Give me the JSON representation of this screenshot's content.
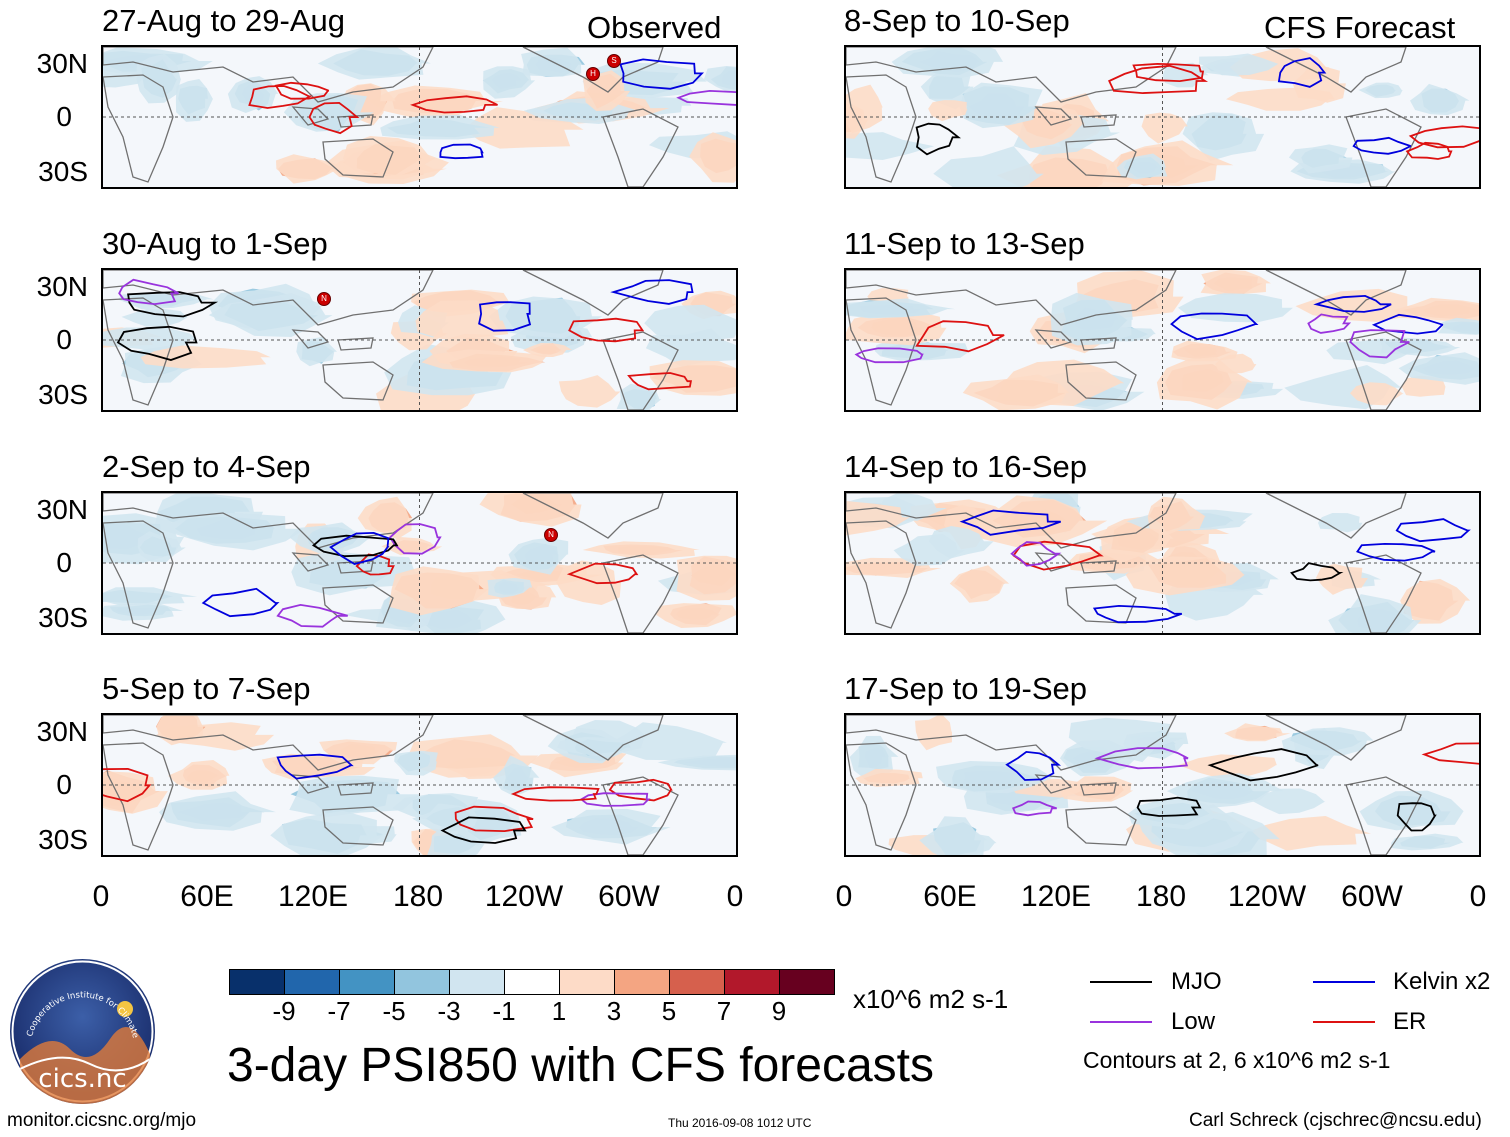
{
  "columns": {
    "left": {
      "label": "Observed"
    },
    "right": {
      "label": "CFS Forecast"
    }
  },
  "panels": {
    "left": [
      {
        "title": "27-Aug to 29-Aug"
      },
      {
        "title": "30-Aug to 1-Sep"
      },
      {
        "title": "2-Sep to 4-Sep"
      },
      {
        "title": "5-Sep to 7-Sep"
      }
    ],
    "right": [
      {
        "title": "8-Sep to 10-Sep"
      },
      {
        "title": "11-Sep to 13-Sep"
      },
      {
        "title": "14-Sep to 16-Sep"
      },
      {
        "title": "17-Sep to 19-Sep"
      }
    ]
  },
  "axes": {
    "lat_labels": [
      "30N",
      "0",
      "30S"
    ],
    "lon_labels": [
      "0",
      "60E",
      "120E",
      "180",
      "120W",
      "60W",
      "0"
    ]
  },
  "storm_markers": {
    "panel1": [
      "H",
      "S"
    ],
    "panel2": [
      "N"
    ],
    "panel3": [
      "N"
    ]
  },
  "colorbar": {
    "labels": [
      "-9",
      "-7",
      "-5",
      "-3",
      "-1",
      "1",
      "3",
      "5",
      "7",
      "9"
    ],
    "units": "x10^6 m2 s-1",
    "colors": [
      "#08306b",
      "#2166ac",
      "#4393c3",
      "#92c5de",
      "#d1e5f0",
      "#ffffff",
      "#fddbc7",
      "#f4a582",
      "#d6604d",
      "#b2182b",
      "#67001f"
    ]
  },
  "legend": {
    "mjo": {
      "label": "MJO",
      "color": "#000000"
    },
    "kelvin": {
      "label": "Kelvin x2",
      "color": "#0000dd"
    },
    "low": {
      "label": "Low",
      "color": "#9933dd"
    },
    "er": {
      "label": "ER",
      "color": "#dd1111"
    },
    "contours_note": "Contours at 2, 6 x10^6 m2 s-1"
  },
  "footer": {
    "main_title": "3-day PSI850 with CFS forecasts",
    "url": "monitor.cicsnc.org/mjo",
    "timestamp": "Thu 2016-09-08 1012 UTC",
    "credit": "Carl Schreck (cjschrec@ncsu.edu)"
  },
  "logo": {
    "arc_text": "Cooperative Institute for Climate and Satellites",
    "name": "cics.nc"
  }
}
